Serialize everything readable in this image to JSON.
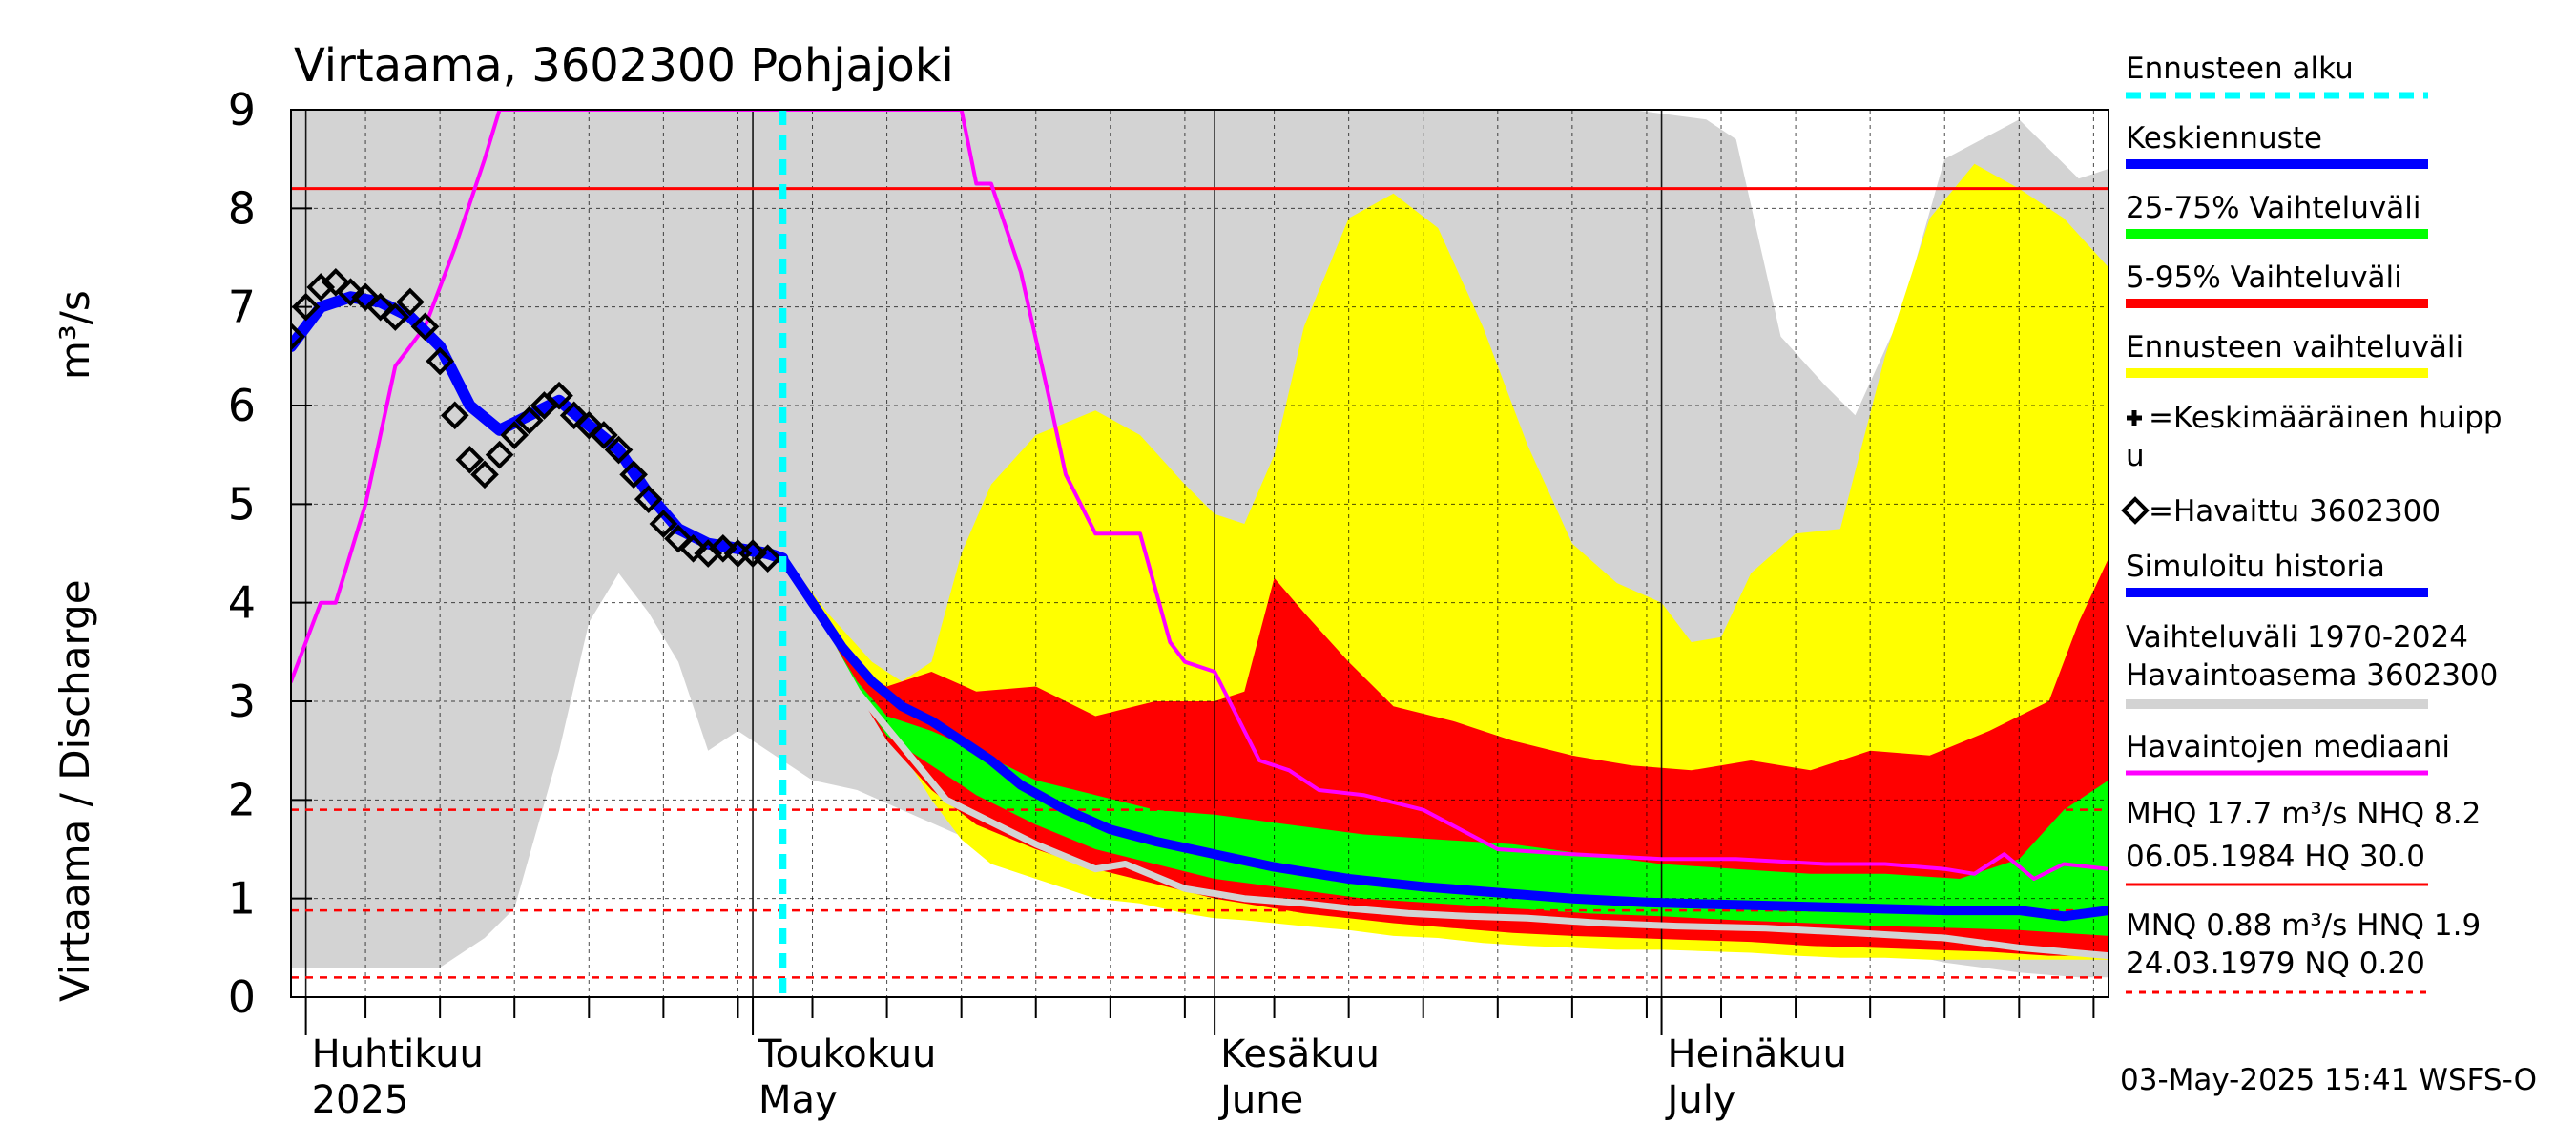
{
  "chart_data": {
    "type": "area",
    "title": "Virtaama, 3602300 Pohjajoki",
    "ylabel": "Virtaama / Discharge",
    "yunit": "m³/s",
    "ylim": [
      0,
      9
    ],
    "yticks": [
      0,
      1,
      2,
      3,
      4,
      5,
      6,
      7,
      8,
      9
    ],
    "xlim": [
      "2025-03-31",
      "2025-07-31"
    ],
    "month_labels": [
      {
        "date": "2025-04-01",
        "line1": "Huhtikuu",
        "line2": "2025"
      },
      {
        "date": "2025-05-01",
        "line1": "Toukokuu",
        "line2": "May"
      },
      {
        "date": "2025-06-01",
        "line1": "Kesäkuu",
        "line2": "June"
      },
      {
        "date": "2025-07-01",
        "line1": "Heinäkuu",
        "line2": "July"
      }
    ],
    "grid": true,
    "forecast_start": "2025-05-03",
    "reference_lines": [
      {
        "name": "NHQ",
        "value": 8.2,
        "color": "#ff0000",
        "style": "solid"
      },
      {
        "name": "HNQ",
        "value": 1.9,
        "color": "#ff0000",
        "style": "dashed"
      },
      {
        "name": "MNQ",
        "value": 0.88,
        "color": "#ff0000",
        "style": "dashed"
      },
      {
        "name": "NQ",
        "value": 0.2,
        "color": "#ff0000",
        "style": "dashed"
      }
    ],
    "history_range": {
      "name": "Vaihteluväli 1970-2024 Havaintoasema 3602300",
      "color": "#d3d3d3",
      "x": [
        "2025-03-31",
        "2025-04-02",
        "2025-04-05",
        "2025-04-10",
        "2025-04-13",
        "2025-04-15",
        "2025-04-18",
        "2025-04-20",
        "2025-04-22",
        "2025-04-24",
        "2025-04-26",
        "2025-04-28",
        "2025-04-30",
        "2025-05-02",
        "2025-05-05",
        "2025-05-08",
        "2025-05-11",
        "2025-05-14",
        "2025-05-17",
        "2025-05-20",
        "2025-05-25",
        "2025-06-01",
        "2025-06-08",
        "2025-06-15",
        "2025-06-22",
        "2025-06-29",
        "2025-07-04",
        "2025-07-06",
        "2025-07-09",
        "2025-07-12",
        "2025-07-14",
        "2025-07-17",
        "2025-07-20",
        "2025-07-25",
        "2025-07-29",
        "2025-07-31"
      ],
      "upper": [
        9,
        9,
        9,
        9,
        9,
        9,
        9,
        9,
        9,
        9,
        9,
        9,
        9,
        9,
        9,
        9,
        9,
        9,
        9,
        9,
        9,
        9,
        9,
        9,
        9,
        9,
        8.9,
        8.7,
        6.7,
        6.2,
        5.9,
        6.9,
        8.5,
        8.9,
        8.3,
        8.4
      ],
      "lower": [
        0.3,
        0.3,
        0.3,
        0.3,
        0.6,
        0.9,
        2.5,
        3.8,
        4.3,
        3.9,
        3.4,
        2.5,
        2.7,
        2.5,
        2.2,
        2.1,
        1.9,
        1.7,
        1.5,
        1.4,
        1.2,
        0.95,
        0.85,
        0.8,
        0.75,
        0.7,
        0.65,
        0.6,
        0.55,
        0.5,
        0.5,
        0.45,
        0.35,
        0.25,
        0.2,
        0.2
      ]
    },
    "forecast_range": {
      "name": "Ennusteen vaihteluväli",
      "color": "#ffff00",
      "x": [
        "2025-05-03",
        "2025-05-06",
        "2025-05-09",
        "2025-05-11",
        "2025-05-13",
        "2025-05-15",
        "2025-05-17",
        "2025-05-20",
        "2025-05-24",
        "2025-05-27",
        "2025-05-30",
        "2025-06-01",
        "2025-06-03",
        "2025-06-05",
        "2025-06-07",
        "2025-06-10",
        "2025-06-13",
        "2025-06-16",
        "2025-06-19",
        "2025-06-22",
        "2025-06-25",
        "2025-06-28",
        "2025-07-01",
        "2025-07-03",
        "2025-07-05",
        "2025-07-07",
        "2025-07-10",
        "2025-07-13",
        "2025-07-16",
        "2025-07-19",
        "2025-07-22",
        "2025-07-25",
        "2025-07-28",
        "2025-07-31"
      ],
      "upper": [
        4.5,
        3.9,
        3.4,
        3.2,
        3.4,
        4.5,
        5.2,
        5.7,
        5.95,
        5.7,
        5.2,
        4.9,
        4.8,
        5.5,
        6.8,
        7.9,
        8.15,
        7.8,
        6.8,
        5.6,
        4.6,
        4.2,
        4.0,
        3.6,
        3.65,
        4.3,
        4.7,
        4.75,
        6.5,
        7.9,
        8.45,
        8.2,
        7.9,
        7.4
      ],
      "lower": [
        4.5,
        3.7,
        3.0,
        2.5,
        2.0,
        1.6,
        1.35,
        1.2,
        1.0,
        0.95,
        0.85,
        0.8,
        0.78,
        0.75,
        0.72,
        0.68,
        0.62,
        0.6,
        0.55,
        0.52,
        0.5,
        0.48,
        0.48,
        0.47,
        0.46,
        0.45,
        0.42,
        0.4,
        0.4,
        0.38,
        0.38,
        0.38,
        0.38,
        0.38
      ]
    },
    "band_5_95": {
      "name": "5-95% Vaihteluväli",
      "color": "#ff0000",
      "x": [
        "2025-05-03",
        "2025-05-06",
        "2025-05-08",
        "2025-05-10",
        "2025-05-13",
        "2025-05-16",
        "2025-05-20",
        "2025-05-24",
        "2025-05-28",
        "2025-06-01",
        "2025-06-03",
        "2025-06-05",
        "2025-06-07",
        "2025-06-10",
        "2025-06-13",
        "2025-06-17",
        "2025-06-21",
        "2025-06-25",
        "2025-06-29",
        "2025-07-03",
        "2025-07-07",
        "2025-07-11",
        "2025-07-15",
        "2025-07-19",
        "2025-07-23",
        "2025-07-27",
        "2025-07-29",
        "2025-07-31"
      ],
      "upper": [
        4.5,
        3.8,
        3.3,
        3.15,
        3.3,
        3.1,
        3.15,
        2.85,
        3.0,
        3.0,
        3.1,
        4.25,
        3.9,
        3.4,
        2.95,
        2.8,
        2.6,
        2.45,
        2.35,
        2.3,
        2.4,
        2.3,
        2.5,
        2.45,
        2.7,
        3.0,
        3.8,
        4.45
      ],
      "lower": [
        4.5,
        3.75,
        3.1,
        2.6,
        2.1,
        1.75,
        1.5,
        1.3,
        1.15,
        1.0,
        0.95,
        0.9,
        0.85,
        0.8,
        0.75,
        0.7,
        0.65,
        0.62,
        0.6,
        0.58,
        0.56,
        0.52,
        0.5,
        0.48,
        0.46,
        0.42,
        0.42,
        0.42
      ]
    },
    "band_25_75": {
      "name": "25-75% Vaihteluväli",
      "color": "#00ff00",
      "x": [
        "2025-05-03",
        "2025-05-06",
        "2025-05-08",
        "2025-05-10",
        "2025-05-13",
        "2025-05-16",
        "2025-05-20",
        "2025-05-24",
        "2025-05-28",
        "2025-06-01",
        "2025-06-06",
        "2025-06-11",
        "2025-06-16",
        "2025-06-21",
        "2025-06-26",
        "2025-07-01",
        "2025-07-06",
        "2025-07-11",
        "2025-07-16",
        "2025-07-21",
        "2025-07-25",
        "2025-07-28",
        "2025-07-31"
      ],
      "upper": [
        4.5,
        3.7,
        3.2,
        2.85,
        2.7,
        2.5,
        2.2,
        2.05,
        1.9,
        1.85,
        1.75,
        1.65,
        1.6,
        1.55,
        1.45,
        1.35,
        1.3,
        1.25,
        1.25,
        1.2,
        1.4,
        1.9,
        2.2
      ],
      "lower": [
        4.5,
        3.7,
        3.1,
        2.65,
        2.35,
        2.05,
        1.75,
        1.5,
        1.35,
        1.2,
        1.1,
        1.0,
        0.95,
        0.9,
        0.85,
        0.82,
        0.78,
        0.75,
        0.72,
        0.7,
        0.68,
        0.65,
        0.62
      ]
    },
    "series": [
      {
        "name": "Keskiennuste",
        "color": "#0000ff",
        "x": [
          "2025-05-03",
          "2025-05-05",
          "2025-05-07",
          "2025-05-09",
          "2025-05-11",
          "2025-05-13",
          "2025-05-15",
          "2025-05-17",
          "2025-05-19",
          "2025-05-22",
          "2025-05-25",
          "2025-05-28",
          "2025-06-01",
          "2025-06-05",
          "2025-06-10",
          "2025-06-15",
          "2025-06-20",
          "2025-06-25",
          "2025-06-30",
          "2025-07-05",
          "2025-07-10",
          "2025-07-15",
          "2025-07-20",
          "2025-07-25",
          "2025-07-28",
          "2025-07-31"
        ],
        "y": [
          4.45,
          4.0,
          3.55,
          3.2,
          2.95,
          2.8,
          2.6,
          2.4,
          2.15,
          1.9,
          1.7,
          1.58,
          1.45,
          1.32,
          1.2,
          1.12,
          1.06,
          1.0,
          0.96,
          0.94,
          0.92,
          0.9,
          0.88,
          0.88,
          0.82,
          0.88
        ]
      },
      {
        "name": "Simuloitu historia",
        "color": "#0000ff",
        "x": [
          "2025-03-31",
          "2025-04-02",
          "2025-04-04",
          "2025-04-06",
          "2025-04-08",
          "2025-04-10",
          "2025-04-12",
          "2025-04-14",
          "2025-04-16",
          "2025-04-18",
          "2025-04-20",
          "2025-04-22",
          "2025-04-24",
          "2025-04-26",
          "2025-04-28",
          "2025-04-30",
          "2025-05-02",
          "2025-05-03"
        ],
        "y": [
          6.6,
          7.0,
          7.1,
          7.05,
          6.9,
          6.6,
          6.0,
          5.75,
          5.9,
          6.05,
          5.8,
          5.55,
          5.1,
          4.75,
          4.6,
          4.55,
          4.5,
          4.45
        ]
      },
      {
        "name": "Havaintojen mediaani",
        "color": "#ff00ff",
        "x": [
          "2025-03-31",
          "2025-04-02",
          "2025-04-03",
          "2025-04-05",
          "2025-04-07",
          "2025-04-09",
          "2025-04-11",
          "2025-04-13",
          "2025-04-14",
          "2025-05-15",
          "2025-05-16",
          "2025-05-17",
          "2025-05-19",
          "2025-05-21",
          "2025-05-22",
          "2025-05-24",
          "2025-05-25",
          "2025-05-27",
          "2025-05-29",
          "2025-05-30",
          "2025-06-01",
          "2025-06-02",
          "2025-06-04",
          "2025-06-06",
          "2025-06-08",
          "2025-06-11",
          "2025-06-15",
          "2025-06-20",
          "2025-06-25",
          "2025-07-01",
          "2025-07-06",
          "2025-07-12",
          "2025-07-16",
          "2025-07-20",
          "2025-07-22",
          "2025-07-24",
          "2025-07-26",
          "2025-07-28",
          "2025-07-31"
        ],
        "y": [
          3.2,
          4.0,
          4.0,
          5.0,
          6.4,
          6.8,
          7.6,
          8.5,
          9.0,
          9.0,
          8.25,
          8.25,
          7.35,
          6.0,
          5.3,
          4.7,
          4.7,
          4.7,
          3.6,
          3.4,
          3.3,
          3.0,
          2.4,
          2.3,
          2.1,
          2.05,
          1.9,
          1.5,
          1.45,
          1.4,
          1.4,
          1.35,
          1.35,
          1.3,
          1.25,
          1.45,
          1.2,
          1.35,
          1.3
        ]
      },
      {
        "name": "Vaihteluväli 1970-2024 (min)",
        "color": "#d3d3d3",
        "x": [
          "2025-05-03",
          "2025-05-08",
          "2025-05-14",
          "2025-05-20",
          "2025-05-24",
          "2025-05-26",
          "2025-05-30",
          "2025-06-03",
          "2025-06-07",
          "2025-06-10",
          "2025-06-14",
          "2025-06-18",
          "2025-06-22",
          "2025-06-27",
          "2025-07-02",
          "2025-07-08",
          "2025-07-14",
          "2025-07-20",
          "2025-07-25",
          "2025-07-31"
        ],
        "y": [
          4.45,
          3.1,
          2.0,
          1.55,
          1.3,
          1.35,
          1.1,
          1.0,
          0.95,
          0.9,
          0.85,
          0.82,
          0.8,
          0.75,
          0.72,
          0.7,
          0.65,
          0.6,
          0.5,
          0.42
        ]
      }
    ],
    "observed": {
      "name": "=Havaittu 3602300",
      "marker": "diamond",
      "x": [
        "2025-03-31",
        "2025-04-01",
        "2025-04-02",
        "2025-04-03",
        "2025-04-04",
        "2025-04-05",
        "2025-04-06",
        "2025-04-07",
        "2025-04-08",
        "2025-04-09",
        "2025-04-10",
        "2025-04-11",
        "2025-04-12",
        "2025-04-13",
        "2025-04-14",
        "2025-04-15",
        "2025-04-16",
        "2025-04-17",
        "2025-04-18",
        "2025-04-19",
        "2025-04-20",
        "2025-04-21",
        "2025-04-22",
        "2025-04-23",
        "2025-04-24",
        "2025-04-25",
        "2025-04-26",
        "2025-04-27",
        "2025-04-28",
        "2025-04-29",
        "2025-04-30",
        "2025-05-01",
        "2025-05-02"
      ],
      "y": [
        6.7,
        7.0,
        7.2,
        7.25,
        7.15,
        7.1,
        7.0,
        6.9,
        7.05,
        6.8,
        6.45,
        5.9,
        5.45,
        5.3,
        5.5,
        5.7,
        5.85,
        6.0,
        6.1,
        5.9,
        5.8,
        5.7,
        5.55,
        5.3,
        5.05,
        4.8,
        4.65,
        4.55,
        4.5,
        4.55,
        4.5,
        4.5,
        4.45
      ]
    }
  },
  "legend": [
    {
      "key": "forecast_start",
      "label": "Ennusteen alku",
      "color": "#00ffff",
      "style": "dashed"
    },
    {
      "key": "mean_forecast",
      "label": "Keskiennuste",
      "color": "#0000ff",
      "style": "line"
    },
    {
      "key": "band_25_75",
      "label": "25-75% Vaihteluväli",
      "color": "#00ff00",
      "style": "line"
    },
    {
      "key": "band_5_95",
      "label": "5-95% Vaihteluväli",
      "color": "#ff0000",
      "style": "line"
    },
    {
      "key": "forecast_range",
      "label": "Ennusteen vaihteluväli",
      "color": "#ffff00",
      "style": "line"
    },
    {
      "key": "mean_peak",
      "label": "=Keskimääräinen huipp",
      "label2": "u",
      "marker": "plus"
    },
    {
      "key": "observed",
      "label": "=Havaittu 3602300",
      "marker": "diamond"
    },
    {
      "key": "simulated",
      "label": "Simuloitu historia",
      "color": "#0000ff",
      "style": "line"
    },
    {
      "key": "history_range",
      "label": "Vaihteluväli 1970-2024",
      "label2": " Havaintoasema 3602300",
      "color": "#d3d3d3",
      "style": "line"
    },
    {
      "key": "median",
      "label": "Havaintojen mediaani",
      "color": "#ff00ff",
      "style": "line"
    }
  ],
  "stats": [
    {
      "line1": "MHQ 17.7 m³/s NHQ  8.2",
      "line2": "06.05.1984 HQ 30.0",
      "color": "#ff0000",
      "style": "solid"
    },
    {
      "line1": "MNQ 0.88 m³/s HNQ  1.9",
      "line2": "24.03.1979 NQ 0.20",
      "color": "#ff0000",
      "style": "dashed"
    }
  ],
  "footer": "03-May-2025 15:41 WSFS-O"
}
